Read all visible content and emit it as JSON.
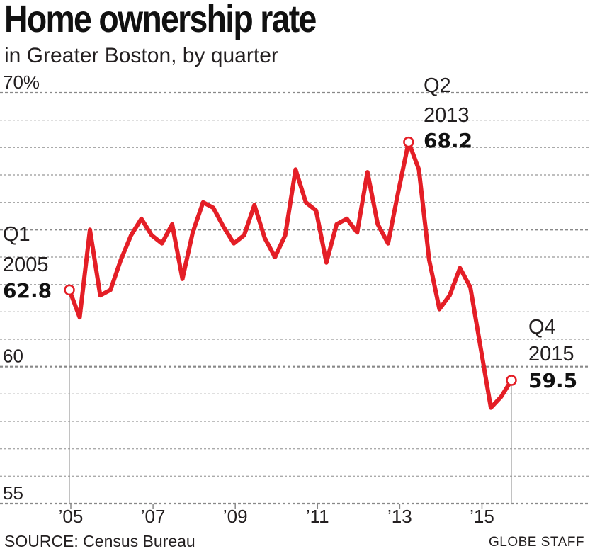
{
  "title": "Home ownership rate",
  "subtitle": "in Greater Boston, by quarter",
  "source": "SOURCE: Census Bureau",
  "credit": "GLOBE STAFF",
  "colors": {
    "line": "#e41e26",
    "grid": "#aaaaaa",
    "text": "#231f20"
  },
  "chart_data": {
    "type": "line",
    "title": "Home ownership rate",
    "subtitle": "in Greater Boston, by quarter",
    "ylim": [
      55,
      70
    ],
    "y_ticks": [
      {
        "value": 70,
        "label": "70%"
      },
      {
        "value": 60,
        "label": "60"
      },
      {
        "value": 55,
        "label": "55"
      }
    ],
    "x_ticks": [
      {
        "x": 2005,
        "label": "’05"
      },
      {
        "x": 2007,
        "label": "’07"
      },
      {
        "x": 2009,
        "label": "’09"
      },
      {
        "x": 2011,
        "label": "’11"
      },
      {
        "x": 2013,
        "label": "’13"
      },
      {
        "x": 2015,
        "label": "’15"
      }
    ],
    "grid": true,
    "series": [
      {
        "x": [
          "2005 Q1",
          "2005 Q2",
          "2005 Q3",
          "2005 Q4",
          "2006 Q1",
          "2006 Q2",
          "2006 Q3",
          "2006 Q4",
          "2007 Q1",
          "2007 Q2",
          "2007 Q3",
          "2007 Q4",
          "2008 Q1",
          "2008 Q2",
          "2008 Q3",
          "2008 Q4",
          "2009 Q1",
          "2009 Q2",
          "2009 Q3",
          "2009 Q4",
          "2010 Q1",
          "2010 Q2",
          "2010 Q3",
          "2010 Q4",
          "2011 Q1",
          "2011 Q2",
          "2011 Q3",
          "2011 Q4",
          "2012 Q1",
          "2012 Q2",
          "2012 Q3",
          "2012 Q4",
          "2013 Q1",
          "2013 Q2",
          "2013 Q3",
          "2013 Q4",
          "2014 Q1",
          "2014 Q2",
          "2014 Q3",
          "2014 Q4",
          "2015 Q1",
          "2015 Q2",
          "2015 Q3",
          "2015 Q4"
        ],
        "values": [
          62.8,
          61.8,
          65.0,
          62.6,
          62.8,
          63.9,
          64.8,
          65.4,
          64.8,
          64.5,
          65.2,
          63.2,
          64.9,
          66.0,
          65.8,
          65.1,
          64.5,
          64.8,
          65.9,
          64.7,
          64.0,
          64.8,
          67.2,
          66.0,
          65.7,
          63.8,
          65.2,
          65.4,
          64.9,
          67.1,
          65.2,
          64.5,
          66.4,
          68.2,
          67.2,
          63.9,
          62.1,
          62.6,
          63.6,
          62.9,
          60.7,
          58.5,
          58.9,
          59.5
        ]
      }
    ],
    "annotations": [
      {
        "period": "Q1",
        "year": "2005",
        "value": "62.8"
      },
      {
        "period": "Q2",
        "year": "2013",
        "value": "68.2"
      },
      {
        "period": "Q4",
        "year": "2015",
        "value": "59.5"
      }
    ]
  }
}
